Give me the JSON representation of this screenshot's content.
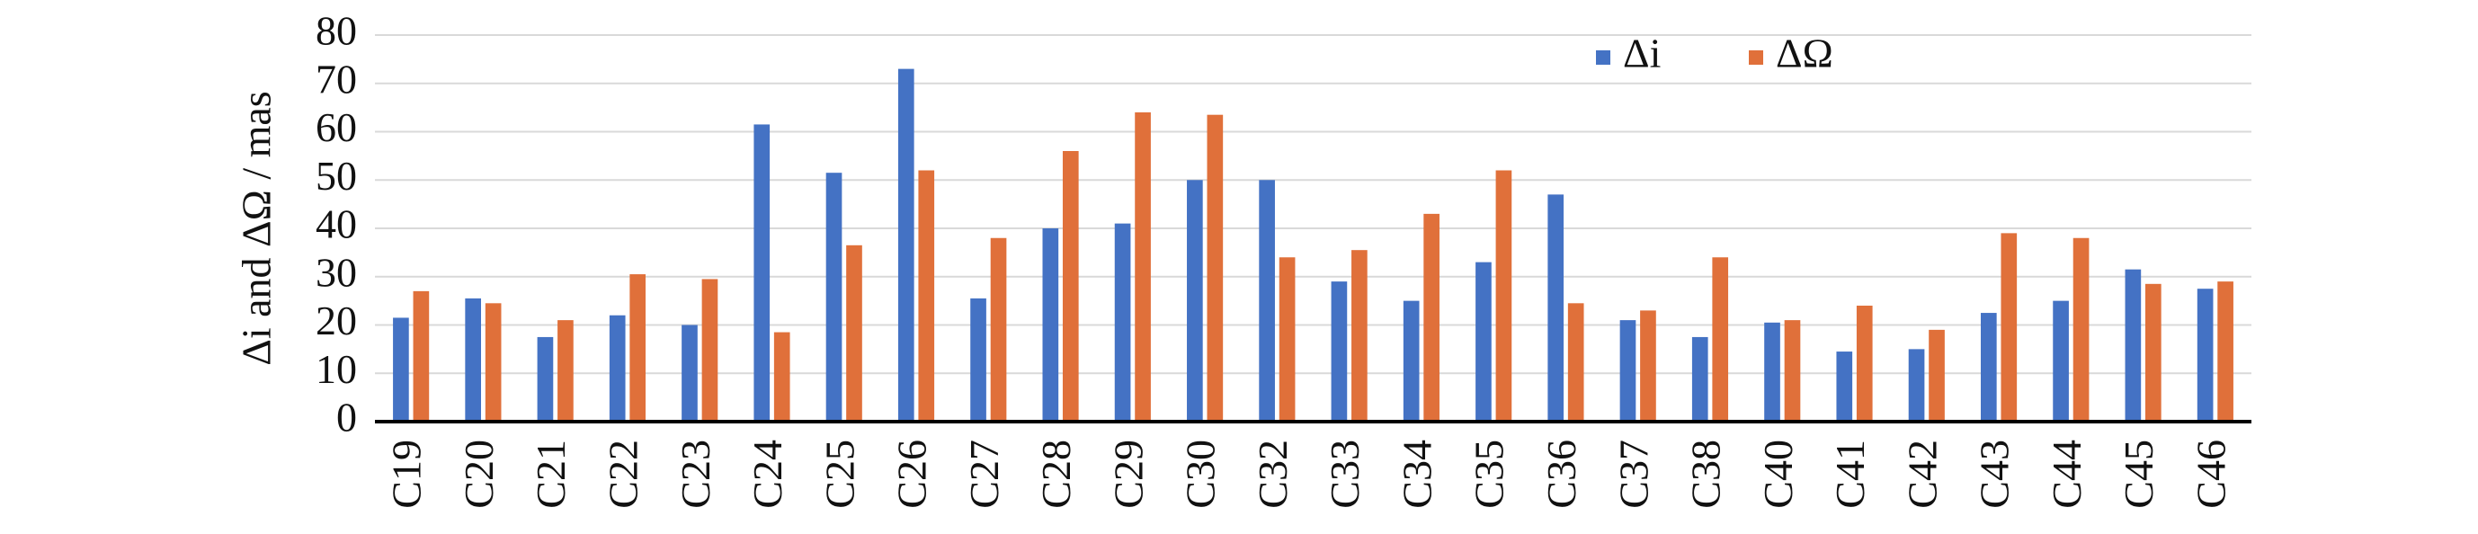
{
  "chart_data": {
    "type": "bar",
    "y_label": "Δi and ΔΩ / mas",
    "categories": [
      "C19",
      "C20",
      "C21",
      "C22",
      "C23",
      "C24",
      "C25",
      "C26",
      "C27",
      "C28",
      "C29",
      "C30",
      "C32",
      "C33",
      "C34",
      "C35",
      "C36",
      "C37",
      "C38",
      "C40",
      "C41",
      "C42",
      "C43",
      "C44",
      "C45",
      "C46"
    ],
    "series": [
      {
        "name": "Δi",
        "color": "#4472c4",
        "values": [
          21.5,
          25.5,
          17.5,
          22,
          20,
          61.5,
          51.5,
          73,
          25.5,
          40,
          41,
          50,
          50,
          29,
          25,
          33,
          47,
          21,
          17.5,
          20.5,
          14.5,
          15,
          22.5,
          25,
          31.5,
          27.5
        ]
      },
      {
        "name": "ΔΩ",
        "color": "#e0703a",
        "values": [
          27,
          24.5,
          21,
          30.5,
          29.5,
          18.5,
          36.5,
          52,
          38,
          56,
          64,
          63.5,
          34,
          35.5,
          43,
          52,
          24.5,
          23,
          34,
          21,
          24,
          19,
          39,
          38,
          28.5,
          29
        ]
      }
    ],
    "ylim": [
      0,
      80
    ],
    "yticks": [
      0,
      10,
      20,
      30,
      40,
      50,
      60,
      70,
      80
    ],
    "grid": true,
    "legend": "top"
  }
}
